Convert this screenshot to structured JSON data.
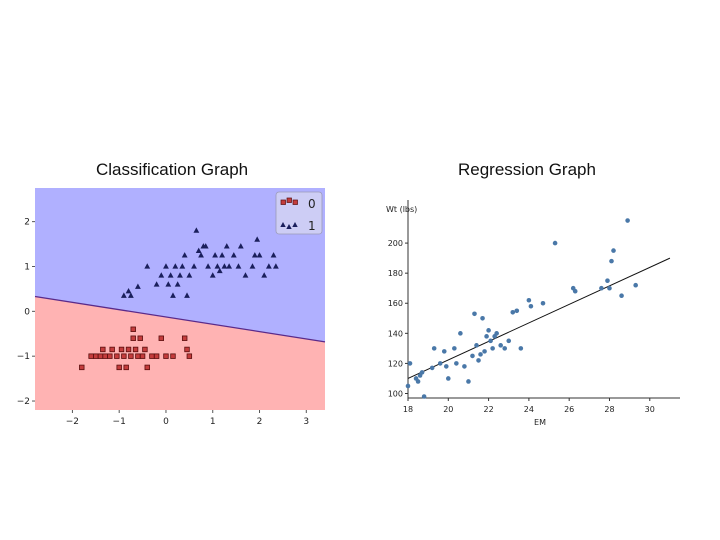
{
  "titles": {
    "left": "Classification Graph",
    "right": "Regression Graph"
  },
  "chart_data": [
    {
      "type": "scatter",
      "title": "Classification Graph",
      "xlim": [
        -2.8,
        3.4
      ],
      "ylim": [
        -2.2,
        2.75
      ],
      "xticks": [
        -2,
        -1,
        0,
        1,
        2,
        3
      ],
      "yticks": [
        2,
        1,
        0,
        -1,
        -2
      ],
      "xtick_labels": [
        "−2",
        "−1",
        "0",
        "1",
        "2",
        "3"
      ],
      "ytick_labels": [
        "2",
        "1",
        "0",
        "−1",
        "−2"
      ],
      "decision_boundary": {
        "x": [
          -2.8,
          3.4
        ],
        "y": [
          0.33,
          -0.68
        ]
      },
      "region_colors": {
        "0": "#ffb3b3",
        "1": "#b0b0ff"
      },
      "legend": {
        "entries": [
          "0",
          "1"
        ],
        "position": "top-right"
      },
      "series": [
        {
          "name": "0",
          "marker": "square",
          "color": "#c43c3c",
          "points": [
            [
              -1.8,
              -1.25
            ],
            [
              -1.6,
              -1.0
            ],
            [
              -1.5,
              -1.0
            ],
            [
              -1.4,
              -1.0
            ],
            [
              -1.35,
              -0.85
            ],
            [
              -1.3,
              -1.0
            ],
            [
              -1.2,
              -1.0
            ],
            [
              -1.15,
              -0.85
            ],
            [
              -1.05,
              -1.0
            ],
            [
              -1.0,
              -1.25
            ],
            [
              -0.95,
              -0.85
            ],
            [
              -0.9,
              -1.0
            ],
            [
              -0.85,
              -1.25
            ],
            [
              -0.8,
              -0.85
            ],
            [
              -0.75,
              -1.0
            ],
            [
              -0.7,
              -0.6
            ],
            [
              -0.7,
              -0.4
            ],
            [
              -0.65,
              -0.85
            ],
            [
              -0.6,
              -1.0
            ],
            [
              -0.55,
              -0.6
            ],
            [
              -0.5,
              -1.0
            ],
            [
              -0.45,
              -0.85
            ],
            [
              -0.4,
              -1.25
            ],
            [
              -0.3,
              -1.0
            ],
            [
              -0.2,
              -1.0
            ],
            [
              -0.1,
              -0.6
            ],
            [
              0.0,
              -1.0
            ],
            [
              0.15,
              -1.0
            ],
            [
              0.4,
              -0.6
            ],
            [
              0.5,
              -1.0
            ],
            [
              0.45,
              -0.85
            ]
          ]
        },
        {
          "name": "1",
          "marker": "triangle",
          "color": "#1a1f5c",
          "points": [
            [
              -0.9,
              0.35
            ],
            [
              -0.8,
              0.45
            ],
            [
              -0.75,
              0.35
            ],
            [
              -0.6,
              0.55
            ],
            [
              -0.4,
              1.0
            ],
            [
              -0.2,
              0.6
            ],
            [
              -0.1,
              0.8
            ],
            [
              0.0,
              1.0
            ],
            [
              0.05,
              0.6
            ],
            [
              0.1,
              0.8
            ],
            [
              0.15,
              0.35
            ],
            [
              0.2,
              1.0
            ],
            [
              0.25,
              0.6
            ],
            [
              0.3,
              0.8
            ],
            [
              0.35,
              1.0
            ],
            [
              0.4,
              1.25
            ],
            [
              0.45,
              0.35
            ],
            [
              0.5,
              0.8
            ],
            [
              0.6,
              1.0
            ],
            [
              0.65,
              1.8
            ],
            [
              0.7,
              1.35
            ],
            [
              0.75,
              1.25
            ],
            [
              0.8,
              1.45
            ],
            [
              0.85,
              1.45
            ],
            [
              0.9,
              1.0
            ],
            [
              1.0,
              0.8
            ],
            [
              1.05,
              1.25
            ],
            [
              1.1,
              1.0
            ],
            [
              1.15,
              0.9
            ],
            [
              1.2,
              1.25
            ],
            [
              1.25,
              1.0
            ],
            [
              1.3,
              1.45
            ],
            [
              1.35,
              1.0
            ],
            [
              1.45,
              1.25
            ],
            [
              1.55,
              1.0
            ],
            [
              1.6,
              1.45
            ],
            [
              1.7,
              0.8
            ],
            [
              1.85,
              1.0
            ],
            [
              1.9,
              1.25
            ],
            [
              1.95,
              1.6
            ],
            [
              2.0,
              1.25
            ],
            [
              2.1,
              0.8
            ],
            [
              2.2,
              1.0
            ],
            [
              2.3,
              1.25
            ],
            [
              2.35,
              1.0
            ]
          ]
        }
      ]
    },
    {
      "type": "scatter",
      "title": "Regression Graph",
      "xlabel": "EM",
      "ylabel": "Wt (lbs)",
      "xlim": [
        18.0,
        31.5
      ],
      "ylim": [
        97,
        222
      ],
      "xticks": [
        18,
        20,
        22,
        24,
        26,
        28,
        30
      ],
      "yticks": [
        100,
        120,
        140,
        160,
        180,
        200
      ],
      "xtick_labels": [
        "18",
        "20",
        "22",
        "24",
        "26",
        "28",
        "30"
      ],
      "ytick_labels": [
        "100",
        "120",
        "140",
        "160",
        "180",
        "200"
      ],
      "fit_line": {
        "x": [
          18.0,
          31.0
        ],
        "y": [
          110,
          190
        ]
      },
      "point_color": "#4a78a8",
      "line_color": "#111111",
      "points": [
        [
          18.0,
          105
        ],
        [
          18.1,
          120
        ],
        [
          18.4,
          110
        ],
        [
          18.5,
          108
        ],
        [
          18.6,
          112
        ],
        [
          18.7,
          114
        ],
        [
          18.8,
          98
        ],
        [
          19.2,
          117
        ],
        [
          19.3,
          130
        ],
        [
          19.6,
          120
        ],
        [
          19.8,
          128
        ],
        [
          19.9,
          118
        ],
        [
          20.0,
          110
        ],
        [
          20.3,
          130
        ],
        [
          20.4,
          120
        ],
        [
          20.6,
          140
        ],
        [
          20.8,
          118
        ],
        [
          21.0,
          108
        ],
        [
          21.2,
          125
        ],
        [
          21.3,
          153
        ],
        [
          21.4,
          132
        ],
        [
          21.5,
          122
        ],
        [
          21.6,
          126
        ],
        [
          21.7,
          150
        ],
        [
          21.8,
          128
        ],
        [
          21.9,
          138
        ],
        [
          22.0,
          142
        ],
        [
          22.1,
          135
        ],
        [
          22.2,
          130
        ],
        [
          22.3,
          138
        ],
        [
          22.4,
          140
        ],
        [
          22.6,
          132
        ],
        [
          22.8,
          130
        ],
        [
          23.0,
          135
        ],
        [
          23.2,
          154
        ],
        [
          23.4,
          155
        ],
        [
          23.6,
          130
        ],
        [
          24.0,
          162
        ],
        [
          24.1,
          158
        ],
        [
          24.7,
          160
        ],
        [
          25.3,
          200
        ],
        [
          26.2,
          170
        ],
        [
          26.3,
          168
        ],
        [
          27.6,
          170
        ],
        [
          27.9,
          175
        ],
        [
          28.0,
          170
        ],
        [
          28.1,
          188
        ],
        [
          28.2,
          195
        ],
        [
          28.6,
          165
        ],
        [
          28.9,
          215
        ],
        [
          29.3,
          172
        ]
      ]
    }
  ]
}
